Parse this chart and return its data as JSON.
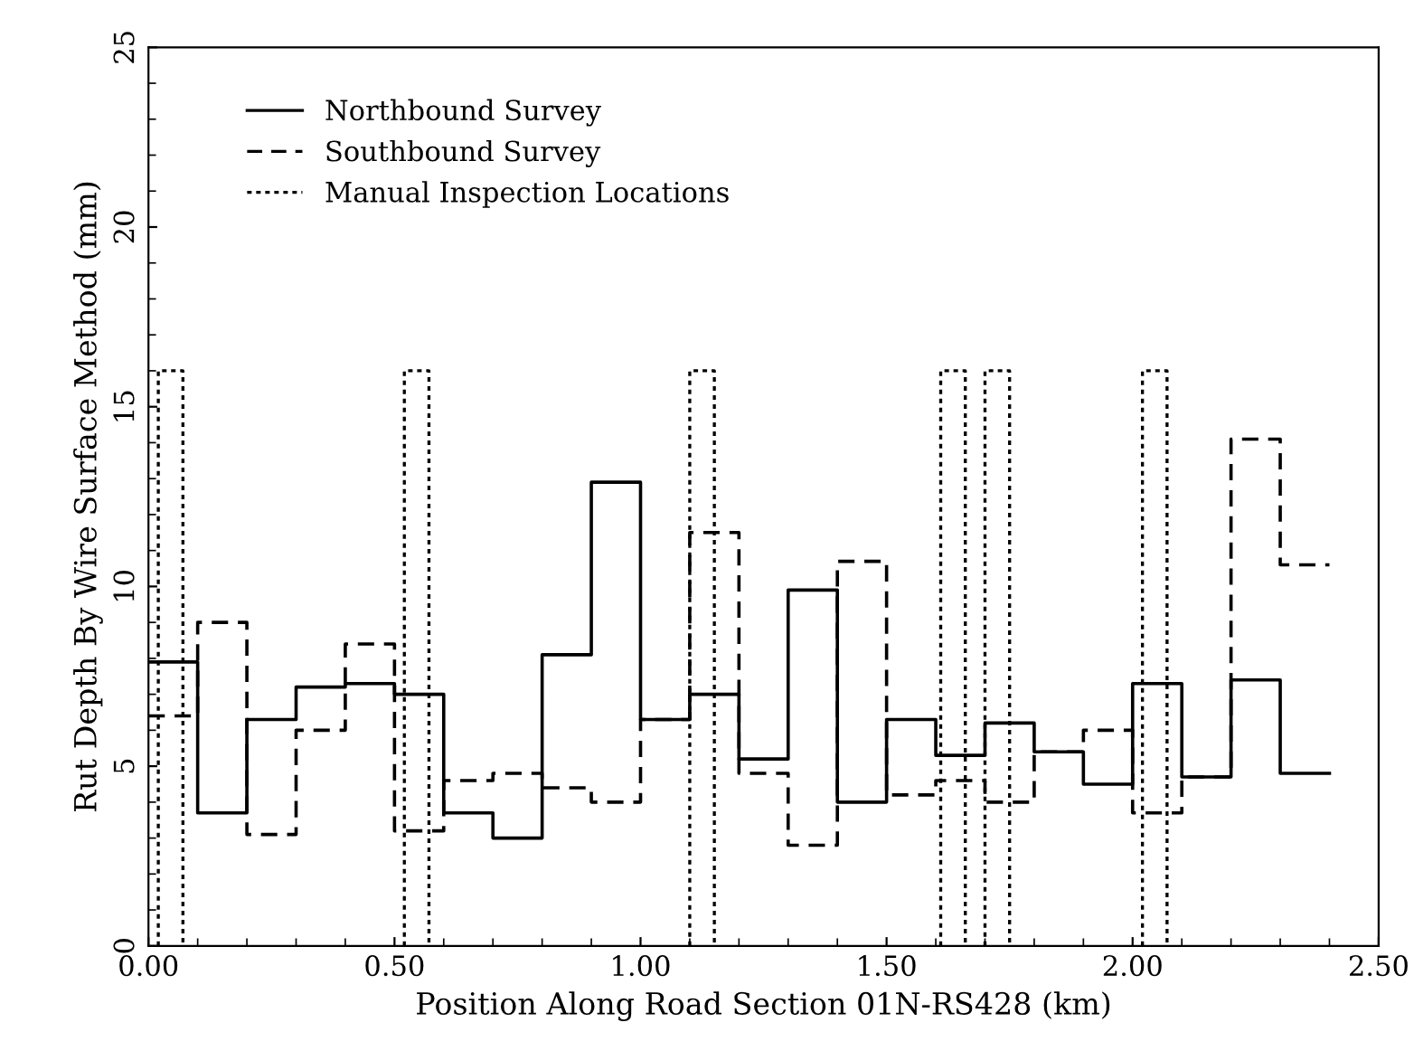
{
  "chart_data": {
    "type": "step",
    "xlabel": "Position Along Road Section 01N-RS428 (km)",
    "ylabel": "Rut Depth By Wire Surface Method (mm)",
    "xlim": [
      0,
      2.5
    ],
    "ylim": [
      0,
      25
    ],
    "xticks": [
      {
        "value": 0,
        "label": "0.00"
      },
      {
        "value": 0.5,
        "label": "0.50"
      },
      {
        "value": 1.0,
        "label": "1.00"
      },
      {
        "value": 1.5,
        "label": "1.50"
      },
      {
        "value": 2.0,
        "label": "2.00"
      },
      {
        "value": 2.5,
        "label": "2.50"
      }
    ],
    "yticks": [
      0,
      5,
      10,
      15,
      20,
      25
    ],
    "grid": false,
    "legend": "top left",
    "series": [
      {
        "name": "Northbound Survey",
        "color": "#000000",
        "line_style": "solid",
        "x": [
          0,
          0.1,
          0.2,
          0.3,
          0.4,
          0.5,
          0.6,
          0.7,
          0.8,
          0.9,
          1.0,
          1.1,
          1.2,
          1.3,
          1.4,
          1.5,
          1.6,
          1.7,
          1.8,
          1.9,
          2.0,
          2.1,
          2.2,
          2.3,
          2.4
        ],
        "values": [
          7.9,
          3.7,
          6.3,
          7.2,
          7.3,
          7.0,
          3.7,
          3.0,
          8.1,
          12.9,
          6.3,
          7.0,
          5.2,
          9.9,
          4.0,
          6.3,
          5.3,
          6.2,
          5.4,
          4.5,
          7.3,
          4.7,
          7.4,
          4.8,
          4.8
        ]
      },
      {
        "name": "Southbound Survey",
        "color": "#000000",
        "line_style": "dashed",
        "x": [
          0,
          0.1,
          0.2,
          0.3,
          0.4,
          0.5,
          0.6,
          0.7,
          0.8,
          0.9,
          1.0,
          1.1,
          1.2,
          1.3,
          1.4,
          1.5,
          1.6,
          1.7,
          1.8,
          1.9,
          2.0,
          2.1,
          2.2,
          2.3,
          2.4
        ],
        "values": [
          6.4,
          9.0,
          3.1,
          6.0,
          8.4,
          3.2,
          4.6,
          4.8,
          4.4,
          4.0,
          6.3,
          11.5,
          4.8,
          2.8,
          10.7,
          4.2,
          4.6,
          4.0,
          5.4,
          6.0,
          3.7,
          4.7,
          14.1,
          10.6,
          10.6
        ]
      },
      {
        "name": "Manual Inspection Locations",
        "color": "#000000",
        "type": "line",
        "line_style": "dotted",
        "x": [
          0.02,
          0.02,
          0.07,
          0.07,
          null,
          0.52,
          0.52,
          0.57,
          0.57,
          null,
          1.1,
          1.1,
          1.15,
          1.15,
          null,
          1.61,
          1.61,
          1.66,
          1.66,
          null,
          1.7,
          1.7,
          1.75,
          1.75,
          null,
          2.02,
          2.02,
          2.07,
          2.07
        ],
        "values": [
          0,
          16,
          16,
          0,
          null,
          0,
          16,
          16,
          0,
          null,
          0,
          16,
          16,
          0,
          null,
          0,
          16,
          16,
          0,
          null,
          0,
          16,
          16,
          0,
          null,
          0,
          16,
          16,
          0
        ]
      }
    ]
  }
}
